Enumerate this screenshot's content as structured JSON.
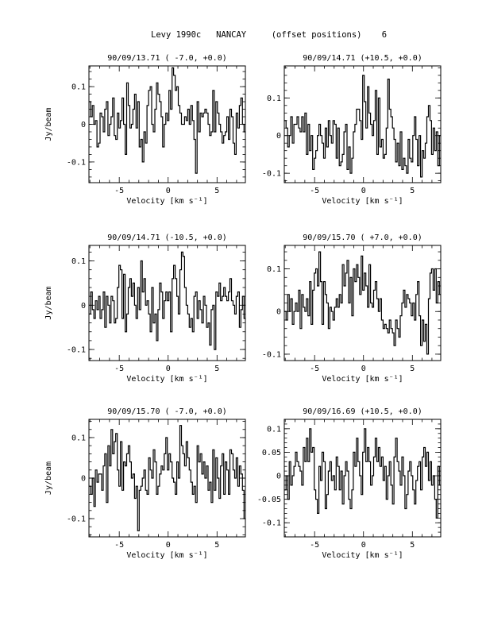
{
  "page": {
    "title": "Levy 1990c   NANCAY     (offset positions)    6"
  },
  "chart_data": [
    {
      "type": "line",
      "title": "90/09/13.71  ( -7.0, +0.0)",
      "xlabel": "Velocity [km s⁻¹]",
      "ylabel": "Jy/beam",
      "xlim": [
        -8.1,
        7.9
      ],
      "ylim": [
        -0.155,
        0.155
      ],
      "xticks": [
        -5,
        0,
        5
      ],
      "yticks": [
        -0.1,
        0,
        0.1
      ],
      "ytick_labels": [
        "-0.1",
        "0",
        "0.1"
      ],
      "series": [
        {
          "x_start": -8.0,
          "dx": 0.16,
          "values": [
            0.06,
            0.02,
            0.05,
            0.0,
            0.01,
            -0.06,
            -0.05,
            0.03,
            0.02,
            -0.02,
            0.04,
            0.06,
            -0.03,
            0.0,
            0.02,
            0.07,
            -0.03,
            -0.04,
            0.03,
            -0.01,
            0.01,
            0.07,
            0.0,
            -0.08,
            0.11,
            0.05,
            -0.01,
            0.0,
            0.04,
            0.08,
            -0.01,
            0.06,
            -0.06,
            -0.04,
            -0.1,
            -0.02,
            -0.05,
            0.05,
            0.09,
            0.1,
            0.0,
            -0.02,
            0.04,
            0.11,
            0.08,
            0.06,
            0.02,
            -0.06,
            0.0,
            0.03,
            0.01,
            0.09,
            0.04,
            0.15,
            0.13,
            0.09,
            0.1,
            0.05,
            0.03,
            0.0,
            0.0,
            0.02,
            0.01,
            0.04,
            0.0,
            0.05,
            0.01,
            -0.04,
            -0.13,
            0.06,
            -0.02,
            0.03,
            0.02,
            0.03,
            0.04,
            0.03,
            0.0,
            -0.03,
            -0.02,
            0.09,
            -0.02,
            0.06,
            0.03,
            0.0,
            -0.02,
            -0.05,
            -0.03,
            -0.02,
            0.02,
            -0.04,
            0.04,
            0.02,
            -0.05,
            -0.08,
            0.03,
            -0.01,
            0.05,
            0.07,
            0.0,
            -0.02
          ]
        }
      ]
    },
    {
      "type": "line",
      "title": "90/09/14.71  (+10.5, +0.0)",
      "xlabel": "Velocity [km s⁻¹]",
      "ylabel": "",
      "xlim": [
        -8.1,
        7.9
      ],
      "ylim": [
        -0.125,
        0.185
      ],
      "xticks": [
        -5,
        0,
        5
      ],
      "yticks": [
        -0.1,
        0,
        0.1
      ],
      "ytick_labels": [
        "-0.1",
        "0",
        "0.1"
      ],
      "series": [
        {
          "x_start": -8.0,
          "dx": 0.16,
          "values": [
            0.04,
            0.02,
            -0.03,
            0.0,
            0.05,
            -0.02,
            0.03,
            0.03,
            0.05,
            0.02,
            0.01,
            0.05,
            0.01,
            0.06,
            -0.05,
            0.03,
            -0.04,
            0.0,
            -0.09,
            -0.06,
            -0.04,
            0.0,
            0.03,
            0.0,
            -0.02,
            -0.06,
            0.02,
            -0.03,
            0.04,
            0.0,
            -0.02,
            0.04,
            0.03,
            -0.06,
            0.02,
            -0.08,
            -0.07,
            -0.05,
            0.01,
            0.03,
            -0.09,
            -0.03,
            -0.1,
            -0.06,
            0.01,
            0.03,
            0.07,
            0.07,
            0.04,
            -0.01,
            0.16,
            0.09,
            0.02,
            0.13,
            0.06,
            0.03,
            0.0,
            0.04,
            0.12,
            -0.05,
            0.1,
            -0.03,
            -0.01,
            -0.06,
            -0.05,
            0.02,
            0.15,
            0.07,
            0.05,
            0.02,
            -0.01,
            -0.07,
            -0.02,
            -0.08,
            0.01,
            -0.09,
            -0.06,
            -0.08,
            -0.1,
            -0.01,
            -0.06,
            -0.07,
            0.0,
            0.05,
            -0.01,
            -0.08,
            0.0,
            -0.11,
            -0.04,
            -0.06,
            -0.02,
            0.05,
            0.08,
            0.04,
            -0.05,
            0.02,
            -0.04,
            0.01,
            -0.08,
            0.0
          ]
        }
      ]
    },
    {
      "type": "line",
      "title": "90/09/14.71  (-10.5, +0.0)",
      "xlabel": "Velocity [km s⁻¹]",
      "ylabel": "Jy/beam",
      "xlim": [
        -8.1,
        7.9
      ],
      "ylim": [
        -0.125,
        0.135
      ],
      "xticks": [
        -5,
        0,
        5
      ],
      "yticks": [
        -0.1,
        0,
        0.1
      ],
      "ytick_labels": [
        "-0.1",
        "0",
        "0.1"
      ],
      "series": [
        {
          "x_start": -8.0,
          "dx": 0.16,
          "values": [
            -0.02,
            0.03,
            -0.01,
            -0.03,
            0.01,
            -0.01,
            0.02,
            -0.03,
            -0.01,
            0.03,
            -0.05,
            0.02,
            0.0,
            -0.04,
            0.02,
            0.01,
            -0.04,
            -0.03,
            0.04,
            0.09,
            0.08,
            -0.03,
            0.07,
            -0.06,
            -0.02,
            0.04,
            0.06,
            0.02,
            0.05,
            0.0,
            -0.03,
            0.04,
            -0.01,
            0.1,
            0.03,
            0.06,
            0.0,
            0.01,
            -0.02,
            -0.06,
            0.04,
            -0.04,
            -0.02,
            -0.08,
            -0.01,
            0.05,
            0.03,
            -0.03,
            0.01,
            0.03,
            0.01,
            0.03,
            -0.06,
            0.06,
            0.09,
            0.06,
            0.02,
            -0.02,
            0.08,
            0.12,
            0.11,
            0.04,
            0.0,
            -0.02,
            -0.05,
            -0.03,
            -0.06,
            0.02,
            0.03,
            -0.03,
            0.01,
            -0.01,
            -0.04,
            0.02,
            0.0,
            -0.05,
            -0.04,
            -0.09,
            -0.01,
            0.0,
            -0.1,
            0.03,
            0.02,
            0.05,
            0.01,
            0.02,
            0.04,
            0.02,
            0.01,
            0.03,
            0.06,
            0.01,
            0.0,
            -0.02,
            0.02,
            0.03,
            -0.05,
            -0.01,
            0.02,
            -0.03
          ]
        }
      ]
    },
    {
      "type": "line",
      "title": "90/09/15.70  ( +7.0, +0.0)",
      "xlabel": "Velocity [km s⁻¹]",
      "ylabel": "",
      "xlim": [
        -8.1,
        7.9
      ],
      "ylim": [
        -0.115,
        0.155
      ],
      "xticks": [
        -5,
        0,
        5
      ],
      "yticks": [
        -0.1,
        0,
        0.1
      ],
      "ytick_labels": [
        "-0.1",
        "0",
        "0.1"
      ],
      "series": [
        {
          "x_start": -8.0,
          "dx": 0.16,
          "values": [
            0.0,
            -0.02,
            0.04,
            0.0,
            0.03,
            -0.03,
            0.0,
            0.02,
            0.0,
            0.05,
            -0.04,
            0.04,
            0.01,
            0.0,
            0.03,
            -0.01,
            0.07,
            -0.03,
            0.05,
            0.09,
            0.1,
            0.06,
            0.14,
            0.07,
            -0.03,
            0.07,
            0.04,
            0.02,
            -0.04,
            0.01,
            0.0,
            -0.02,
            0.01,
            0.03,
            0.01,
            0.04,
            0.02,
            0.11,
            0.06,
            0.09,
            0.12,
            0.02,
            0.08,
            -0.01,
            0.1,
            0.07,
            0.11,
            0.08,
            0.04,
            0.13,
            0.05,
            0.09,
            0.06,
            0.01,
            0.11,
            0.02,
            0.01,
            0.05,
            0.07,
            0.03,
            0.0,
            0.03,
            -0.02,
            -0.04,
            -0.03,
            -0.04,
            -0.05,
            -0.02,
            -0.04,
            -0.05,
            -0.08,
            -0.02,
            -0.04,
            -0.06,
            -0.01,
            0.02,
            0.05,
            0.01,
            0.04,
            0.03,
            0.02,
            -0.01,
            0.02,
            -0.02,
            0.04,
            0.07,
            -0.01,
            -0.08,
            -0.02,
            -0.07,
            -0.03,
            -0.1,
            0.03,
            0.09,
            0.1,
            0.05,
            0.1,
            0.02,
            0.07,
            0.04
          ]
        }
      ]
    },
    {
      "type": "line",
      "title": "90/09/15.70  ( -7.0, +0.0)",
      "xlabel": "Velocity [km s⁻¹]",
      "ylabel": "Jy/beam",
      "xlim": [
        -8.1,
        7.9
      ],
      "ylim": [
        -0.145,
        0.145
      ],
      "xticks": [
        -5,
        0,
        5
      ],
      "yticks": [
        -0.1,
        0,
        0.1
      ],
      "ytick_labels": [
        "-0.1",
        "0",
        "0.1"
      ],
      "series": [
        {
          "x_start": -8.0,
          "dx": 0.16,
          "values": [
            -0.02,
            -0.04,
            0.0,
            -0.07,
            0.02,
            -0.01,
            0.01,
            0.01,
            -0.03,
            0.03,
            0.06,
            -0.06,
            0.08,
            0.03,
            0.12,
            0.06,
            0.09,
            0.11,
            0.02,
            -0.02,
            0.09,
            -0.03,
            0.04,
            0.03,
            0.06,
            0.08,
            0.04,
            0.0,
            0.01,
            -0.05,
            -0.02,
            -0.13,
            -0.03,
            -0.02,
            0.0,
            0.02,
            -0.03,
            -0.04,
            0.05,
            0.02,
            0.0,
            0.07,
            0.04,
            -0.04,
            -0.02,
            0.01,
            0.03,
            0.02,
            0.06,
            0.1,
            0.02,
            0.06,
            0.04,
            0.0,
            -0.01,
            -0.04,
            0.04,
            0.0,
            0.13,
            0.08,
            0.06,
            0.03,
            0.09,
            0.05,
            0.02,
            -0.01,
            -0.04,
            -0.02,
            -0.06,
            0.08,
            0.04,
            0.06,
            0.01,
            0.04,
            0.0,
            0.03,
            -0.03,
            -0.01,
            -0.06,
            0.07,
            -0.03,
            0.05,
            0.0,
            -0.05,
            0.03,
            0.06,
            -0.04,
            0.04,
            0.02,
            -0.04,
            0.07,
            0.06,
            0.02,
            0.0,
            0.05,
            -0.02,
            0.03,
            0.01,
            -0.03,
            -0.1
          ]
        }
      ]
    },
    {
      "type": "line",
      "title": "90/09/16.69  (+10.5, +0.0)",
      "xlabel": "Velocity [km s⁻¹]",
      "ylabel": "",
      "xlim": [
        -8.1,
        7.9
      ],
      "ylim": [
        -0.13,
        0.12
      ],
      "xticks": [
        -5,
        0,
        5
      ],
      "yticks": [
        -0.1,
        -0.05,
        0,
        0.05,
        0.1
      ],
      "ytick_labels": [
        "-0.1",
        "-0.05",
        "0",
        "0.05",
        "0.1"
      ],
      "series": [
        {
          "x_start": -8.0,
          "dx": 0.16,
          "values": [
            -0.03,
            0.0,
            -0.05,
            0.03,
            -0.02,
            0.0,
            0.02,
            0.05,
            0.03,
            0.02,
            0.01,
            -0.02,
            0.06,
            0.03,
            0.08,
            0.03,
            0.1,
            0.05,
            0.06,
            -0.03,
            -0.05,
            -0.08,
            0.02,
            -0.01,
            0.05,
            0.03,
            -0.07,
            -0.04,
            0.01,
            0.03,
            -0.01,
            0.0,
            -0.03,
            0.04,
            0.02,
            -0.03,
            0.01,
            -0.06,
            0.0,
            0.03,
            0.01,
            -0.05,
            -0.07,
            -0.03,
            0.05,
            0.02,
            0.08,
            0.03,
            0.0,
            -0.04,
            0.05,
            0.1,
            0.03,
            0.06,
            0.03,
            -0.02,
            0.0,
            0.04,
            0.08,
            0.03,
            0.06,
            0.02,
            0.04,
            -0.01,
            0.02,
            -0.05,
            0.0,
            0.03,
            -0.02,
            -0.06,
            0.04,
            0.08,
            0.03,
            0.01,
            -0.02,
            0.04,
            0.0,
            -0.07,
            -0.04,
            0.01,
            0.03,
            0.0,
            -0.03,
            -0.06,
            -0.01,
            0.02,
            0.03,
            -0.03,
            0.04,
            0.06,
            0.02,
            0.05,
            -0.01,
            0.03,
            -0.02,
            0.0,
            -0.05,
            -0.09,
            0.02,
            -0.02
          ]
        }
      ]
    }
  ]
}
